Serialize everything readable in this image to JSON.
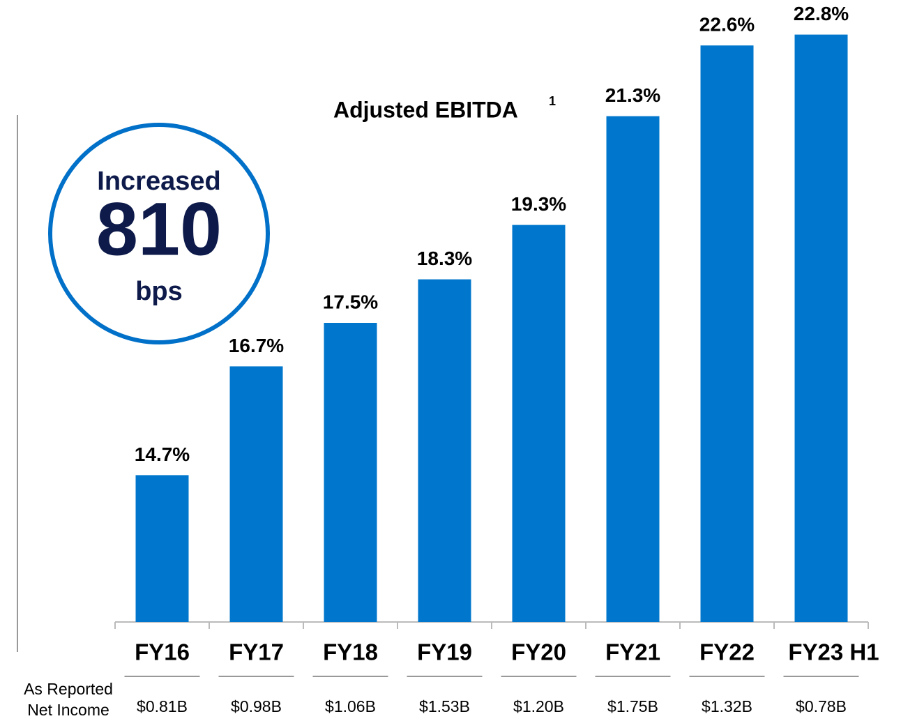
{
  "chart_data": {
    "type": "bar",
    "title": "Adjusted EBITDA",
    "title_superscript": "1",
    "categories": [
      "FY16",
      "FY17",
      "FY18",
      "FY19",
      "FY20",
      "FY21",
      "FY22",
      "FY23 H1"
    ],
    "values": [
      14.7,
      16.7,
      17.5,
      18.3,
      19.3,
      21.3,
      22.6,
      22.8
    ],
    "value_labels": [
      "14.7%",
      "16.7%",
      "17.5%",
      "18.3%",
      "19.3%",
      "21.3%",
      "22.6%",
      "22.8%"
    ],
    "color": "#0077cc",
    "ylim": [
      12,
      23
    ],
    "annotation": {
      "lines": [
        "Increased",
        "810",
        "bps"
      ]
    },
    "net_income": {
      "label_lines": [
        "As Reported",
        "Net Income"
      ],
      "labels": [
        "$0.81B",
        "$0.98B",
        "$1.06B",
        "$1.53B",
        "$1.20B",
        "$1.75B",
        "$1.32B",
        "$0.78B"
      ]
    }
  }
}
